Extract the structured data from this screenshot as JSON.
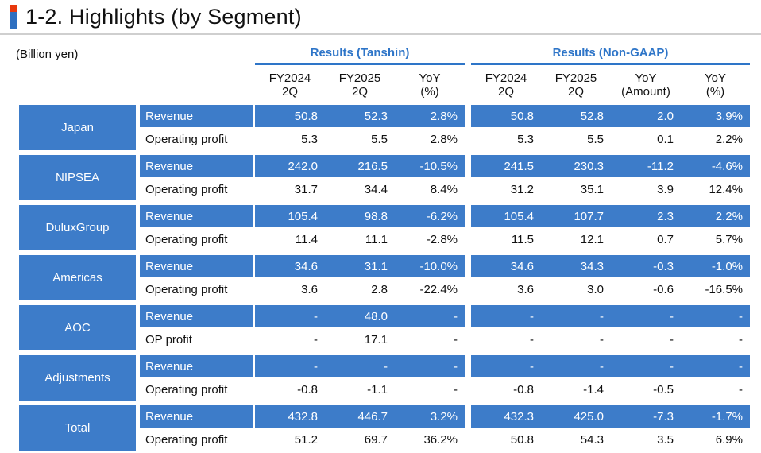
{
  "slide": {
    "title": "1-2. Highlights (by Segment)",
    "unit_label": "(Billion yen)"
  },
  "table": {
    "group_headers": [
      {
        "label": "Results (Tanshin)",
        "columns": 3
      },
      {
        "label": "Results (Non-GAAP)",
        "columns": 4
      }
    ],
    "column_headers": [
      {
        "line1": "FY2024",
        "line2": "2Q"
      },
      {
        "line1": "FY2025",
        "line2": "2Q"
      },
      {
        "line1": "YoY",
        "line2": "(%)"
      },
      {
        "line1": "FY2024",
        "line2": "2Q"
      },
      {
        "line1": "FY2025",
        "line2": "2Q"
      },
      {
        "line1": "YoY",
        "line2": "(Amount)"
      },
      {
        "line1": "YoY",
        "line2": "(%)"
      }
    ],
    "segments": [
      {
        "name": "Japan",
        "rows": [
          {
            "label": "Revenue",
            "tanshin": [
              "50.8",
              "52.3",
              "2.8%"
            ],
            "nongaap": [
              "50.8",
              "52.8",
              "2.0",
              "3.9%"
            ]
          },
          {
            "label": "Operating profit",
            "tanshin": [
              "5.3",
              "5.5",
              "2.8%"
            ],
            "nongaap": [
              "5.3",
              "5.5",
              "0.1",
              "2.2%"
            ]
          }
        ]
      },
      {
        "name": "NIPSEA",
        "rows": [
          {
            "label": "Revenue",
            "tanshin": [
              "242.0",
              "216.5",
              "-10.5%"
            ],
            "nongaap": [
              "241.5",
              "230.3",
              "-11.2",
              "-4.6%"
            ]
          },
          {
            "label": "Operating profit",
            "tanshin": [
              "31.7",
              "34.4",
              "8.4%"
            ],
            "nongaap": [
              "31.2",
              "35.1",
              "3.9",
              "12.4%"
            ]
          }
        ]
      },
      {
        "name": "DuluxGroup",
        "rows": [
          {
            "label": "Revenue",
            "tanshin": [
              "105.4",
              "98.8",
              "-6.2%"
            ],
            "nongaap": [
              "105.4",
              "107.7",
              "2.3",
              "2.2%"
            ]
          },
          {
            "label": "Operating profit",
            "tanshin": [
              "11.4",
              "11.1",
              "-2.8%"
            ],
            "nongaap": [
              "11.5",
              "12.1",
              "0.7",
              "5.7%"
            ]
          }
        ]
      },
      {
        "name": "Americas",
        "rows": [
          {
            "label": "Revenue",
            "tanshin": [
              "34.6",
              "31.1",
              "-10.0%"
            ],
            "nongaap": [
              "34.6",
              "34.3",
              "-0.3",
              "-1.0%"
            ]
          },
          {
            "label": "Operating profit",
            "tanshin": [
              "3.6",
              "2.8",
              "-22.4%"
            ],
            "nongaap": [
              "3.6",
              "3.0",
              "-0.6",
              "-16.5%"
            ]
          }
        ]
      },
      {
        "name": "AOC",
        "rows": [
          {
            "label": "Revenue",
            "tanshin": [
              "-",
              "48.0",
              "-"
            ],
            "nongaap": [
              "-",
              "-",
              "-",
              "-"
            ]
          },
          {
            "label": "OP profit",
            "tanshin": [
              "-",
              "17.1",
              "-"
            ],
            "nongaap": [
              "-",
              "-",
              "-",
              "-"
            ]
          }
        ]
      },
      {
        "name": "Adjustments",
        "rows": [
          {
            "label": "Revenue",
            "tanshin": [
              "-",
              "-",
              "-"
            ],
            "nongaap": [
              "-",
              "-",
              "-",
              "-"
            ]
          },
          {
            "label": "Operating profit",
            "tanshin": [
              "-0.8",
              "-1.1",
              "-"
            ],
            "nongaap": [
              "-0.8",
              "-1.4",
              "-0.5",
              "-"
            ]
          }
        ]
      },
      {
        "name": "Total",
        "rows": [
          {
            "label": "Revenue",
            "tanshin": [
              "432.8",
              "446.7",
              "3.2%"
            ],
            "nongaap": [
              "432.3",
              "425.0",
              "-7.3",
              "-1.7%"
            ]
          },
          {
            "label": "Operating profit",
            "tanshin": [
              "51.2",
              "69.7",
              "36.2%"
            ],
            "nongaap": [
              "50.8",
              "54.3",
              "3.5",
              "6.9%"
            ]
          }
        ]
      }
    ]
  },
  "colors": {
    "cell_blue": "#3d7cc9",
    "header_blue": "#2e75c8",
    "marker_red": "#e8380d",
    "marker_blue": "#2e6fc0",
    "rule_gray": "#cfcfcf"
  }
}
